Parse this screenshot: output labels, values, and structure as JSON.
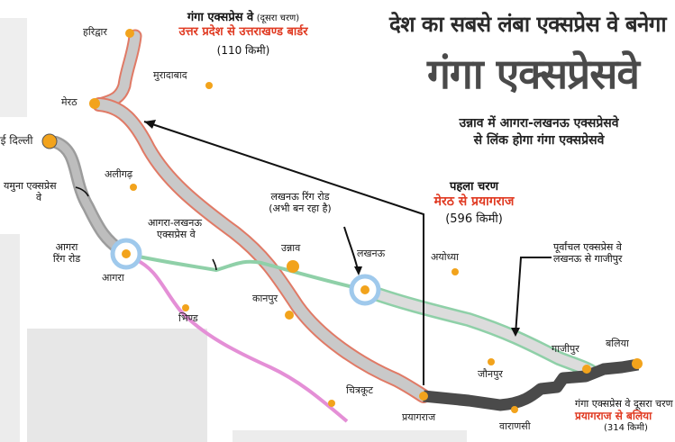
{
  "header": {
    "line1": "देश का सबसे लंबा एक्सप्रेस वे बनेगा",
    "line2": "गंगा एक्सप्रेसवे",
    "sub1": "उन्नाव में आगरा-लखनऊ एक्सप्रेसवे",
    "sub2": "से लिंक होगा गंगा एक्सप्रेसवे"
  },
  "phase2_north": {
    "title": "गंगा एक्सप्रेस वे",
    "title_small": "(दूसरा चरण)",
    "route": "उत्तर प्रदेश से उत्तराखण्ड बार्डर",
    "distance": "(110 किमी)"
  },
  "phase1": {
    "title": "पहला चरण",
    "route": "मेरठ से प्रयागराज",
    "distance": "(596 किमी)"
  },
  "phase2_east": {
    "title": "गंगा एक्सप्रेस वे दूसरा चरण",
    "route": "प्रयागराज से बलिया",
    "distance": "(314 किमी)"
  },
  "labels": {
    "yamuna": "यमुना एक्सप्रेस",
    "yamuna2": "वे",
    "agra_ring": "आगरा",
    "agra_ring2": "रिंग रोड",
    "agra_lucknow": "आगरा-लखनऊ",
    "agra_lucknow2": "एक्सप्रेस वे",
    "lucknow_ring": "लखनऊ रिंग रोड",
    "lucknow_ring2": "(अभी बन रहा है)",
    "purvanchal": "पूर्वांचल एक्सप्रेस वे",
    "purvanchal2": "लखनऊ से गाजीपुर"
  },
  "places": {
    "haridwar": "हरिद्वार",
    "meerut": "मेरठ",
    "moradabad": "मुरादाबाद",
    "delhi": "नई दिल्ली",
    "aligarh": "अलीगढ़",
    "agra": "आगरा",
    "bhind": "भिण्ड",
    "unnao": "उन्नाव",
    "kanpur": "कानपुर",
    "lucknow": "लखनऊ",
    "ayodhya": "अयोध्या",
    "chitrakoot": "चित्रकूट",
    "prayagraj": "प्रयागराज",
    "jaunpur": "जौनपुर",
    "varanasi": "वाराणसी",
    "ghazipur": "गाजीपुर",
    "ballia": "बलिया"
  },
  "colors": {
    "expressway_gray": "#c9c9c9",
    "expressway_edge": "#e07a66",
    "phase2_dark": "#4a4a4a",
    "agra_lucknow_green": "#8fd0a8",
    "yamuna_gray": "#9c9c9c",
    "other_road_pink": "#e48fd6",
    "city_dot": "#f2a31c",
    "accent_red": "#e03a22",
    "ring_blue": "#9fc9ec"
  }
}
